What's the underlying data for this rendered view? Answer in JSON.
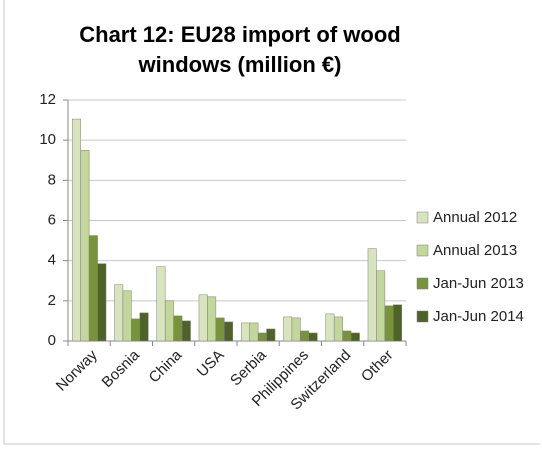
{
  "chart_data": {
    "type": "bar",
    "title": "Chart 12: EU28 import of wood windows (million €)",
    "categories": [
      "Norway",
      "Bosnia",
      "China",
      "USA",
      "Serbia",
      "Philippines",
      "Switzerland",
      "Other"
    ],
    "series": [
      {
        "name": "Annual 2012",
        "color": "#d7e4bd",
        "values": [
          11.05,
          2.8,
          3.7,
          2.3,
          0.9,
          1.2,
          1.35,
          4.6
        ]
      },
      {
        "name": "Annual 2013",
        "color": "#c3d69b",
        "values": [
          9.5,
          2.5,
          2.0,
          2.2,
          0.9,
          1.15,
          1.2,
          3.5
        ]
      },
      {
        "name": "Jan-Jun 2013",
        "color": "#77933c",
        "values": [
          5.25,
          1.1,
          1.25,
          1.15,
          0.4,
          0.5,
          0.5,
          1.75
        ]
      },
      {
        "name": "Jan-Jun 2014",
        "color": "#4f6228",
        "values": [
          3.85,
          1.4,
          1.0,
          0.95,
          0.6,
          0.4,
          0.4,
          1.8
        ]
      }
    ],
    "ylim": [
      0,
      12
    ],
    "yticks": [
      0,
      2,
      4,
      6,
      8,
      10,
      12
    ],
    "grid": true,
    "legend": "right"
  }
}
